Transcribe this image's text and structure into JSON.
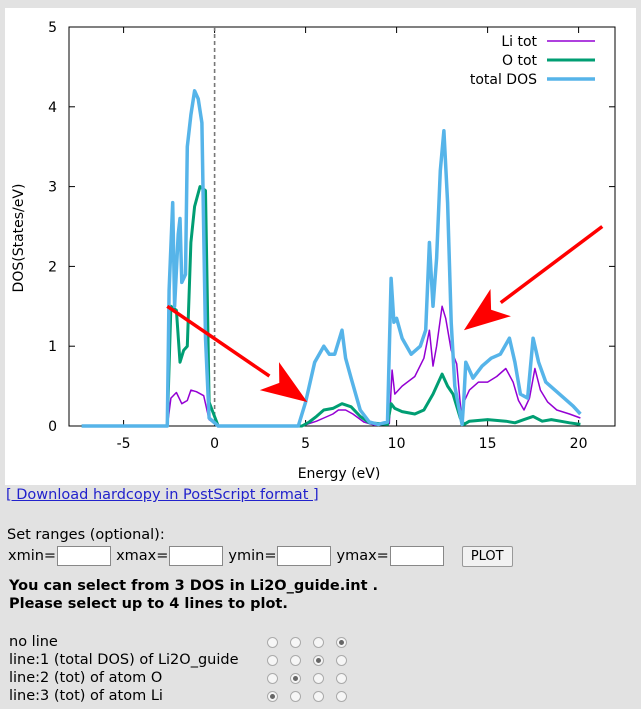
{
  "chart_data": {
    "type": "line",
    "title": "",
    "xlabel": "Energy (eV)",
    "ylabel": "DOS(States/eV)",
    "xlim": [
      -8,
      22
    ],
    "ylim": [
      0,
      5
    ],
    "x_ticks": [
      -5,
      0,
      5,
      10,
      15,
      20
    ],
    "y_ticks": [
      0,
      1,
      2,
      3,
      4,
      5
    ],
    "fermi_level": 0,
    "legend_position": "top-right",
    "series": [
      {
        "name": "Li tot",
        "color": "#9400d3",
        "x": [
          -7.3,
          -2.6,
          -2.4,
          -2.1,
          -1.8,
          -1.5,
          -1.3,
          -1.0,
          -0.6,
          -0.3,
          0.2,
          4.8,
          5.2,
          5.6,
          6.0,
          6.5,
          6.8,
          7.2,
          7.6,
          8.2,
          8.8,
          9.6,
          9.75,
          9.9,
          10.3,
          11.0,
          11.5,
          11.8,
          12.0,
          12.2,
          12.5,
          12.7,
          13.0,
          13.3,
          13.6,
          13.7,
          14.0,
          14.5,
          15.0,
          15.5,
          16.0,
          16.4,
          16.7,
          17.0,
          17.3,
          17.6,
          17.9,
          18.3,
          18.8,
          19.5,
          20.1
        ],
        "y": [
          0,
          0,
          0.35,
          0.42,
          0.28,
          0.32,
          0.45,
          0.43,
          0.38,
          0.08,
          0,
          0,
          0.03,
          0.06,
          0.1,
          0.15,
          0.2,
          0.2,
          0.15,
          0.05,
          0.01,
          0.03,
          0.7,
          0.4,
          0.5,
          0.62,
          0.85,
          1.2,
          0.75,
          1.0,
          1.5,
          1.35,
          0.95,
          0.78,
          0.02,
          0.3,
          0.45,
          0.55,
          0.55,
          0.62,
          0.72,
          0.55,
          0.32,
          0.2,
          0.35,
          0.72,
          0.45,
          0.3,
          0.2,
          0.15,
          0.1
        ]
      },
      {
        "name": "O tot",
        "color": "#009e73",
        "x": [
          -7.3,
          -2.6,
          -2.4,
          -2.1,
          -1.9,
          -1.7,
          -1.5,
          -1.3,
          -1.1,
          -0.8,
          -0.5,
          -0.3,
          0.2,
          4.8,
          5.2,
          5.6,
          6.0,
          6.5,
          7.0,
          7.5,
          8.0,
          8.5,
          9.5,
          9.7,
          9.9,
          10.3,
          11.0,
          11.5,
          12.0,
          12.5,
          12.8,
          13.1,
          13.5,
          13.7,
          14.0,
          15.0,
          16.0,
          16.5,
          17.0,
          17.5,
          18.0,
          18.5,
          19.0,
          19.5,
          20.1
        ],
        "y": [
          0,
          0,
          1.5,
          1.45,
          0.8,
          0.95,
          1.0,
          2.3,
          2.75,
          3.0,
          2.95,
          0.3,
          0,
          0,
          0.05,
          0.12,
          0.2,
          0.22,
          0.28,
          0.24,
          0.12,
          0.04,
          0.02,
          0.28,
          0.22,
          0.18,
          0.15,
          0.2,
          0.4,
          0.65,
          0.5,
          0.4,
          0.1,
          0.02,
          0.06,
          0.08,
          0.06,
          0.04,
          0.08,
          0.12,
          0.06,
          0.08,
          0.06,
          0.04,
          0.02
        ]
      },
      {
        "name": "total DOS",
        "color": "#56b4e9",
        "x": [
          -7.3,
          -2.6,
          -2.5,
          -2.3,
          -2.2,
          -2.0,
          -1.9,
          -1.8,
          -1.6,
          -1.5,
          -1.3,
          -1.1,
          -0.9,
          -0.7,
          -0.5,
          -0.3,
          0.2,
          4.6,
          5.0,
          5.5,
          6.0,
          6.3,
          6.6,
          7.0,
          7.2,
          7.5,
          8.0,
          8.5,
          9.0,
          9.5,
          9.7,
          9.85,
          10.0,
          10.3,
          10.8,
          11.3,
          11.6,
          11.8,
          12.0,
          12.2,
          12.4,
          12.6,
          12.8,
          13.0,
          13.2,
          13.4,
          13.6,
          13.7,
          13.8,
          14.2,
          14.7,
          15.2,
          15.7,
          16.2,
          16.5,
          16.8,
          17.2,
          17.5,
          17.8,
          18.2,
          18.7,
          19.2,
          19.7,
          20.1
        ],
        "y": [
          0,
          0,
          1.7,
          2.8,
          1.5,
          2.4,
          2.6,
          1.8,
          1.9,
          3.5,
          3.9,
          4.2,
          4.1,
          3.8,
          1.1,
          0.1,
          0,
          0,
          0.3,
          0.8,
          1.0,
          0.9,
          0.9,
          1.2,
          0.85,
          0.6,
          0.2,
          0.05,
          0.02,
          0.05,
          1.85,
          1.3,
          1.35,
          1.1,
          0.9,
          1.0,
          1.2,
          2.3,
          1.5,
          2.1,
          3.2,
          3.7,
          2.8,
          1.3,
          0.5,
          0.25,
          0.02,
          0.35,
          0.8,
          0.6,
          0.75,
          0.85,
          0.9,
          1.1,
          0.8,
          0.4,
          0.35,
          1.1,
          0.8,
          0.55,
          0.45,
          0.35,
          0.25,
          0.15
        ]
      }
    ]
  },
  "annotations": {
    "arrow_color": "#ff0000",
    "arrows": [
      {
        "from": [
          -2.6,
          1.5
        ],
        "to": [
          5.1,
          0.3
        ]
      },
      {
        "from": [
          21.3,
          2.5
        ],
        "to": [
          13.7,
          1.2
        ]
      }
    ]
  },
  "download_link": "[ Download hardcopy in PostScript format ]",
  "ranges": {
    "label": "Set ranges (optional):",
    "xmin_label": "xmin=",
    "xmax_label": "xmax=",
    "ymin_label": "ymin=",
    "ymax_label": "ymax=",
    "xmin_value": "",
    "xmax_value": "",
    "ymin_value": "",
    "ymax_value": "",
    "plot_button": "PLOT"
  },
  "info": {
    "line1": "You can select from 3 DOS in Li2O_guide.int .",
    "line2": "Please select up to 4 lines to plot."
  },
  "selection": {
    "rows": [
      {
        "label": "no line",
        "selected": 3
      },
      {
        "label": "line:1 (total DOS) of Li2O_guide",
        "selected": 2
      },
      {
        "label": "line:2 (tot) of atom O",
        "selected": 1
      },
      {
        "label": "line:3 (tot) of atom Li",
        "selected": 0
      }
    ],
    "columns": 4
  }
}
